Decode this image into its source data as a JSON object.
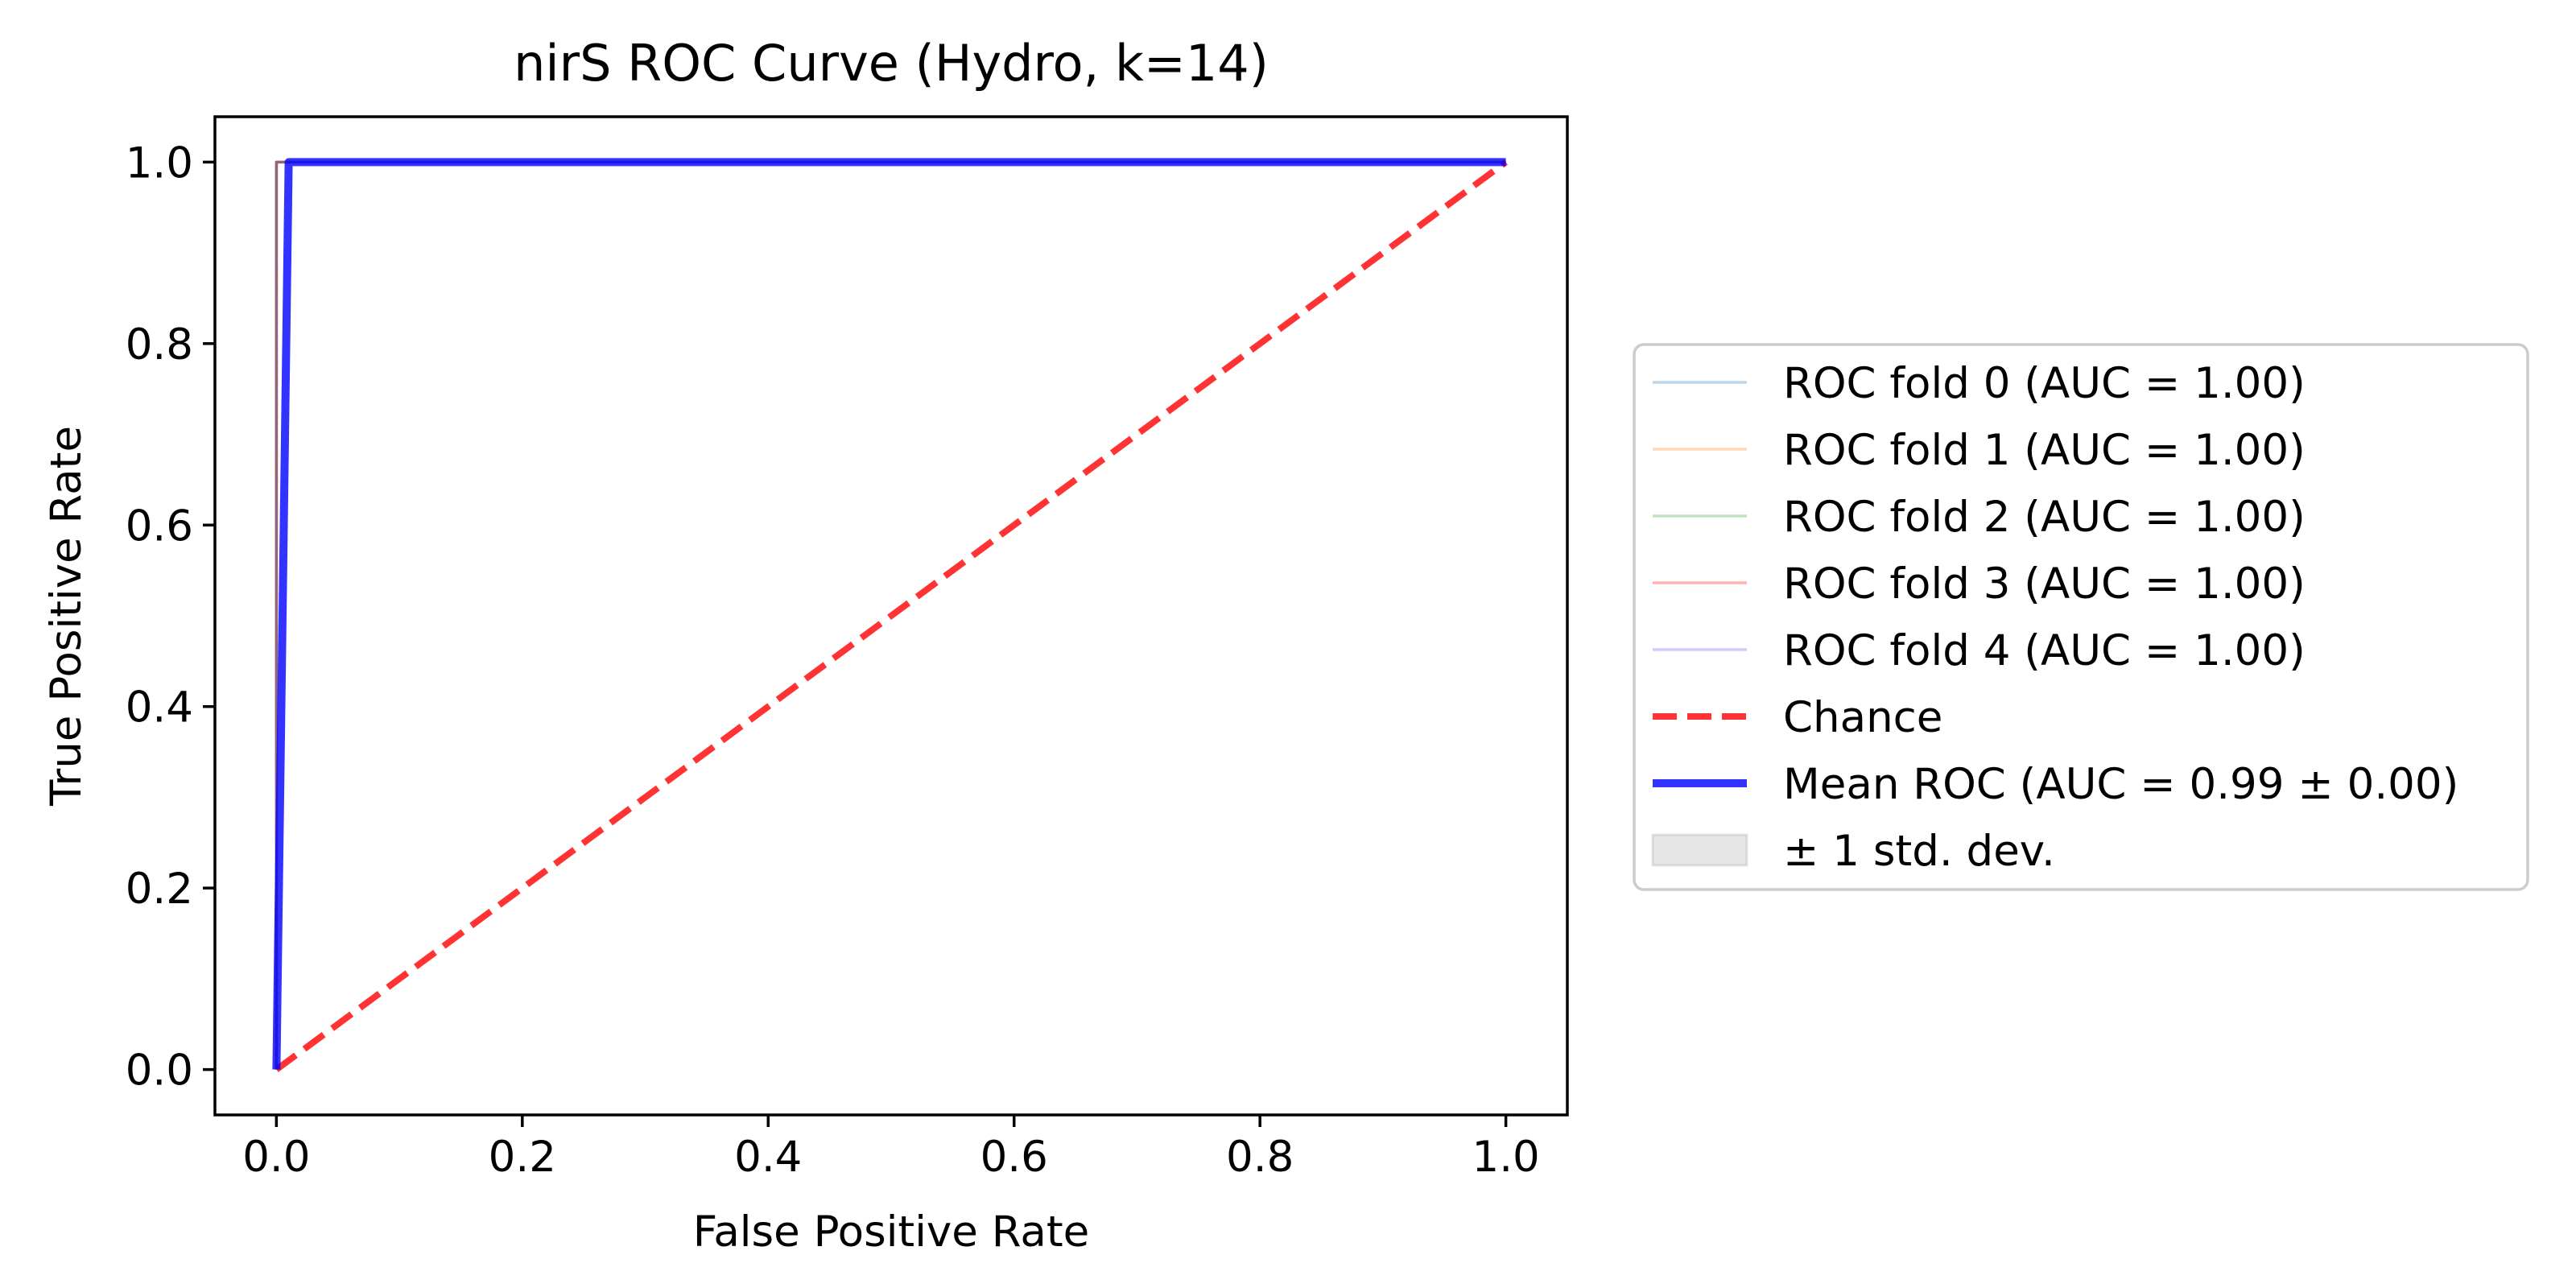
{
  "chart_data": {
    "type": "line",
    "title": "nirS ROC Curve (Hydro, k=14)",
    "xlabel": "False Positive Rate",
    "ylabel": "True Positive Rate",
    "xlim": [
      -0.05,
      1.05
    ],
    "ylim": [
      -0.05,
      1.05
    ],
    "xticks": [
      {
        "value": 0.0,
        "label": "0.0"
      },
      {
        "value": 0.2,
        "label": "0.2"
      },
      {
        "value": 0.4,
        "label": "0.4"
      },
      {
        "value": 0.6,
        "label": "0.6"
      },
      {
        "value": 0.8,
        "label": "0.8"
      },
      {
        "value": 1.0,
        "label": "1.0"
      }
    ],
    "yticks": [
      {
        "value": 0.0,
        "label": "0.0"
      },
      {
        "value": 0.2,
        "label": "0.2"
      },
      {
        "value": 0.4,
        "label": "0.4"
      },
      {
        "value": 0.6,
        "label": "0.6"
      },
      {
        "value": 0.8,
        "label": "0.8"
      },
      {
        "value": 1.0,
        "label": "1.0"
      }
    ],
    "grid": false,
    "legend_position": "outside-right",
    "series": [
      {
        "name": "ROC fold 0 (AUC = 1.00)",
        "color": "#1f77b4",
        "opacity": 0.3,
        "dash": false,
        "x": [
          0,
          0,
          1
        ],
        "y": [
          0,
          1,
          1
        ]
      },
      {
        "name": "ROC fold 1 (AUC = 1.00)",
        "color": "#ff7f0e",
        "opacity": 0.3,
        "dash": false,
        "x": [
          0,
          0,
          1
        ],
        "y": [
          0,
          1,
          1
        ]
      },
      {
        "name": "ROC fold 2 (AUC = 1.00)",
        "color": "#2ca02c",
        "opacity": 0.3,
        "dash": false,
        "x": [
          0,
          0,
          1
        ],
        "y": [
          0,
          1,
          1
        ]
      },
      {
        "name": "ROC fold 3 (AUC = 1.00)",
        "color": "#ff0000",
        "opacity": 0.3,
        "dash": false,
        "x": [
          0,
          0,
          1
        ],
        "y": [
          0,
          1,
          1
        ]
      },
      {
        "name": "ROC fold 4 (AUC = 1.00)",
        "color": "#0000ff",
        "opacity": 0.2,
        "dash": false,
        "x": [
          0,
          0,
          1
        ],
        "y": [
          0,
          1,
          1
        ]
      },
      {
        "name": "Chance",
        "color": "#ff0000",
        "opacity": 0.8,
        "dash": true,
        "x": [
          0,
          1
        ],
        "y": [
          0,
          1
        ]
      },
      {
        "name": "Mean ROC (AUC = 0.99 ±  0.00)",
        "color": "#0000ff",
        "opacity": 0.8,
        "dash": false,
        "x": [
          0,
          0.01,
          1
        ],
        "y": [
          0,
          1,
          1
        ]
      }
    ],
    "std_band": {
      "name": "± 1 std. dev.",
      "color": "#808080",
      "opacity": 0.2
    }
  }
}
